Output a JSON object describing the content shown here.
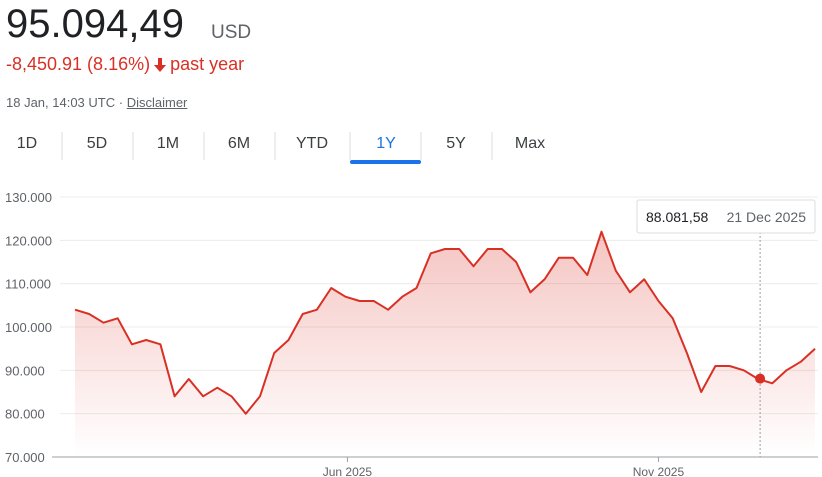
{
  "header": {
    "price": "95.094,49",
    "currency": "USD",
    "change": "-8,450.91 (8.16%)",
    "period": "past year",
    "timestamp": "18 Jan, 14:03 UTC",
    "separator": "·",
    "disclaimer": "Disclaimer"
  },
  "tabs": {
    "labels": [
      "1D",
      "5D",
      "1M",
      "6M",
      "YTD",
      "1Y",
      "5Y",
      "Max"
    ],
    "selected": 5
  },
  "chart_data": {
    "type": "line",
    "color": "#d93025",
    "grid": true,
    "x": [
      "2025-01-18",
      "2025-01-25",
      "2025-02-01",
      "2025-02-08",
      "2025-02-15",
      "2025-02-22",
      "2025-03-01",
      "2025-03-08",
      "2025-03-15",
      "2025-03-22",
      "2025-03-29",
      "2025-04-05",
      "2025-04-12",
      "2025-04-19",
      "2025-04-26",
      "2025-05-03",
      "2025-05-10",
      "2025-05-17",
      "2025-05-24",
      "2025-05-31",
      "2025-06-07",
      "2025-06-14",
      "2025-06-21",
      "2025-06-28",
      "2025-07-05",
      "2025-07-12",
      "2025-07-19",
      "2025-07-26",
      "2025-08-02",
      "2025-08-09",
      "2025-08-16",
      "2025-08-23",
      "2025-08-30",
      "2025-09-06",
      "2025-09-13",
      "2025-09-20",
      "2025-09-27",
      "2025-10-04",
      "2025-10-11",
      "2025-10-18",
      "2025-10-25",
      "2025-11-01",
      "2025-11-08",
      "2025-11-15",
      "2025-11-22",
      "2025-11-29",
      "2025-12-06",
      "2025-12-13",
      "2025-12-20",
      "2025-12-27",
      "2026-01-03",
      "2026-01-10",
      "2026-01-17"
    ],
    "values": [
      104000,
      103000,
      101000,
      102000,
      96000,
      97000,
      96000,
      84000,
      88000,
      84000,
      86000,
      84000,
      80000,
      84000,
      94000,
      97000,
      103000,
      104000,
      109000,
      107000,
      106000,
      106000,
      104000,
      107000,
      109000,
      117000,
      118000,
      118000,
      114000,
      118000,
      118000,
      115000,
      108000,
      111000,
      116000,
      116000,
      112000,
      122000,
      113000,
      108000,
      111000,
      106000,
      102000,
      94000,
      85000,
      91000,
      91000,
      90000,
      88000,
      87000,
      90000,
      92000,
      95000
    ],
    "xlim": [
      "2025-01-18",
      "2026-01-17"
    ],
    "xticks": [
      {
        "value": "2025-06-01",
        "label": "Jun 2025"
      },
      {
        "value": "2025-11-01",
        "label": "Nov 2025"
      }
    ],
    "ylim": [
      70000,
      130000
    ],
    "yticks": [
      {
        "value": 70000,
        "label": "70.000"
      },
      {
        "value": 80000,
        "label": "80.000"
      },
      {
        "value": 90000,
        "label": "90.000"
      },
      {
        "value": 100000,
        "label": "100.000"
      },
      {
        "value": 110000,
        "label": "110.000"
      },
      {
        "value": 120000,
        "label": "120.000"
      },
      {
        "value": 130000,
        "label": "130.000"
      }
    ],
    "tooltip": {
      "x": "2025-12-21",
      "value": 88081.58,
      "label": "88.081,58",
      "date_label": "21 Dec 2025"
    }
  }
}
